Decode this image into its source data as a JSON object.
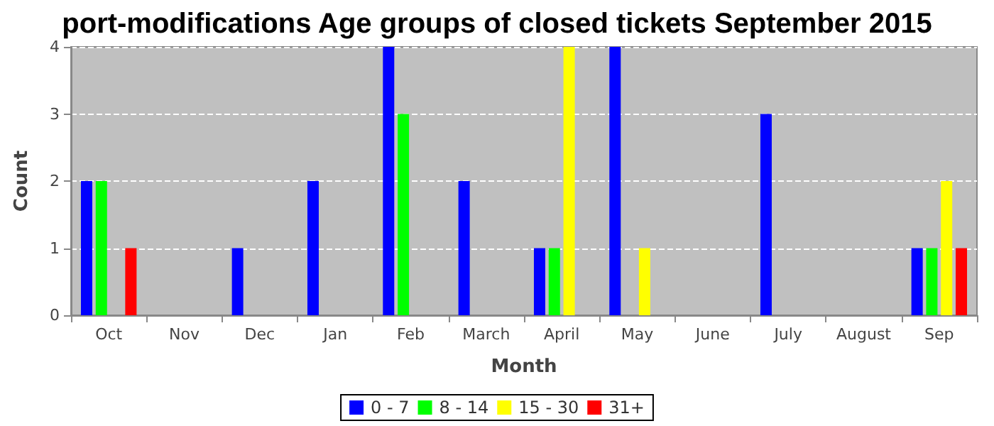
{
  "chart_data": {
    "type": "bar",
    "title": "port-modifications Age groups of closed tickets September 2015",
    "xlabel": "Month",
    "ylabel": "Count",
    "categories": [
      "Oct",
      "Nov",
      "Dec",
      "Jan",
      "Feb",
      "March",
      "April",
      "May",
      "June",
      "July",
      "August",
      "Sep"
    ],
    "series": [
      {
        "name": "0 - 7",
        "color": "#0000ff",
        "values": [
          2,
          0,
          1,
          2,
          4,
          2,
          1,
          4,
          0,
          3,
          0,
          1
        ]
      },
      {
        "name": "8 - 14",
        "color": "#00ff00",
        "values": [
          2,
          0,
          0,
          0,
          3,
          0,
          1,
          0,
          0,
          0,
          0,
          1
        ]
      },
      {
        "name": "15 - 30",
        "color": "#ffff00",
        "values": [
          0,
          0,
          0,
          0,
          0,
          0,
          4,
          1,
          0,
          0,
          0,
          2
        ]
      },
      {
        "name": "31+",
        "color": "#ff0000",
        "values": [
          1,
          0,
          0,
          0,
          0,
          0,
          0,
          0,
          0,
          0,
          0,
          1
        ]
      }
    ],
    "ylim": [
      0,
      4
    ],
    "yticks": [
      0,
      1,
      2,
      3,
      4
    ],
    "grid": "y",
    "legend": "bottom"
  }
}
